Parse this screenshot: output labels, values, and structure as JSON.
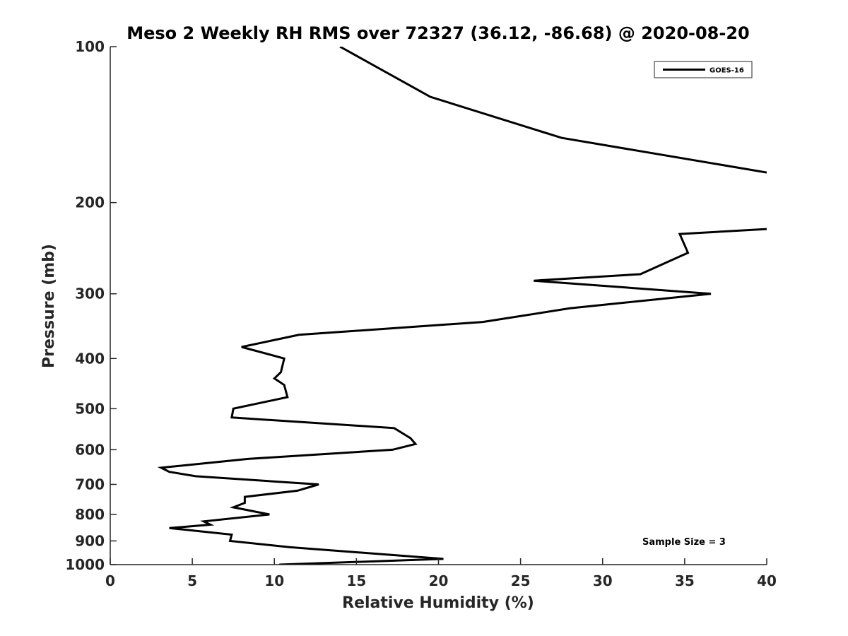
{
  "chart_data": {
    "type": "line",
    "title": "Meso 2 Weekly RH RMS over 72327 (36.12, -86.68) @ 2020-08-20",
    "xlabel": "Relative Humidity (%)",
    "ylabel": "Pressure (mb)",
    "xlim": [
      0,
      40
    ],
    "ylim": [
      100,
      1000
    ],
    "y_scale": "log",
    "y_reversed": true,
    "x_ticks": [
      0,
      5,
      10,
      15,
      20,
      25,
      30,
      35,
      40
    ],
    "y_ticks": [
      100,
      200,
      300,
      400,
      500,
      600,
      700,
      800,
      900,
      1000
    ],
    "grid": false,
    "legend_position": "top-right",
    "annotation": "Sample Size = 3",
    "series": [
      {
        "name": "GOES-16",
        "color": "#000000",
        "points": [
          {
            "x": 14.0,
            "y": 100
          },
          {
            "x": 19.5,
            "y": 125
          },
          {
            "x": 27.5,
            "y": 150
          },
          {
            "x": 40.0,
            "y": 175
          },
          {
            "x": null,
            "y": null
          },
          {
            "x": 40.0,
            "y": 225
          },
          {
            "x": 34.7,
            "y": 230
          },
          {
            "x": 35.2,
            "y": 250
          },
          {
            "x": 32.3,
            "y": 275
          },
          {
            "x": 25.8,
            "y": 283
          },
          {
            "x": 36.6,
            "y": 300
          },
          {
            "x": 28.0,
            "y": 320
          },
          {
            "x": 22.7,
            "y": 340
          },
          {
            "x": 11.5,
            "y": 360
          },
          {
            "x": 8.0,
            "y": 380
          },
          {
            "x": 10.6,
            "y": 400
          },
          {
            "x": 10.4,
            "y": 425
          },
          {
            "x": 10.0,
            "y": 437
          },
          {
            "x": 10.6,
            "y": 450
          },
          {
            "x": 10.8,
            "y": 475
          },
          {
            "x": 7.5,
            "y": 500
          },
          {
            "x": 7.4,
            "y": 520
          },
          {
            "x": 17.3,
            "y": 545
          },
          {
            "x": 18.3,
            "y": 570
          },
          {
            "x": 18.6,
            "y": 585
          },
          {
            "x": 17.2,
            "y": 600
          },
          {
            "x": 8.4,
            "y": 625
          },
          {
            "x": 3.1,
            "y": 650
          },
          {
            "x": 3.6,
            "y": 662
          },
          {
            "x": 5.2,
            "y": 675
          },
          {
            "x": 12.7,
            "y": 700
          },
          {
            "x": 11.4,
            "y": 720
          },
          {
            "x": 8.2,
            "y": 740
          },
          {
            "x": 8.2,
            "y": 760
          },
          {
            "x": 7.5,
            "y": 775
          },
          {
            "x": 9.7,
            "y": 800
          },
          {
            "x": 5.7,
            "y": 825
          },
          {
            "x": 6.1,
            "y": 837
          },
          {
            "x": 3.6,
            "y": 850
          },
          {
            "x": 7.4,
            "y": 875
          },
          {
            "x": 7.3,
            "y": 900
          },
          {
            "x": 10.9,
            "y": 925
          },
          {
            "x": 20.3,
            "y": 975
          },
          {
            "x": 10.3,
            "y": 1000
          }
        ]
      }
    ]
  }
}
